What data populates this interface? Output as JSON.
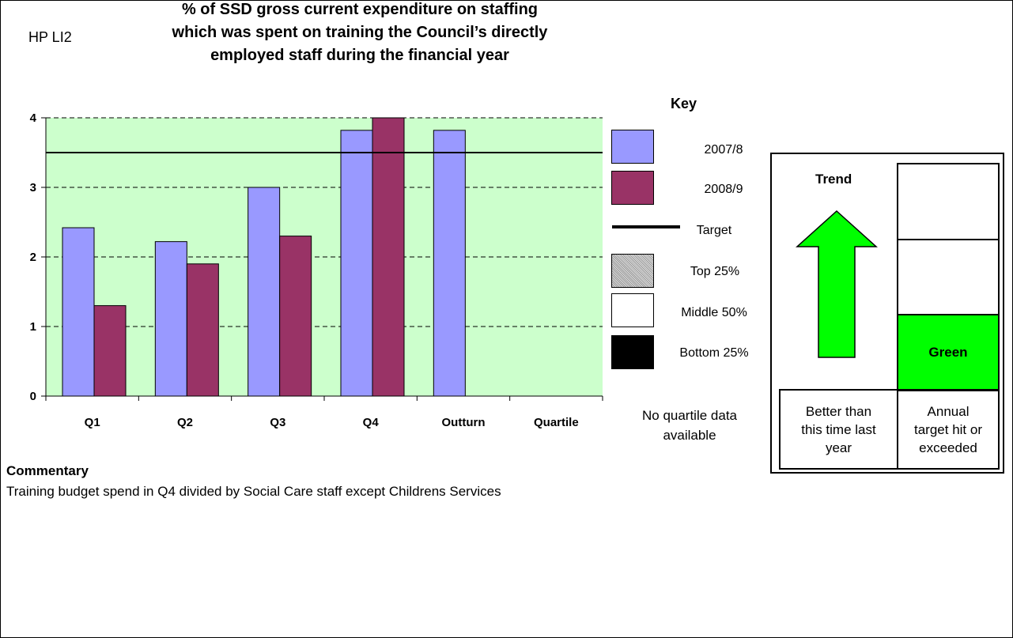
{
  "header": {
    "code": "HP LI2",
    "title_lines": [
      "% of SSD gross current expenditure on staffing",
      "which was spent on training the Council’s directly",
      "employed staff during the financial year"
    ]
  },
  "chart_data": {
    "type": "bar",
    "categories": [
      "Q1",
      "Q2",
      "Q3",
      "Q4",
      "Outturn",
      "Quartile"
    ],
    "series": [
      {
        "name": "2007/8",
        "values": [
          2.42,
          2.22,
          3.0,
          3.82,
          3.82,
          null
        ],
        "color": "#9999ff"
      },
      {
        "name": "2008/9",
        "values": [
          1.3,
          1.9,
          2.3,
          4.05,
          null,
          null
        ],
        "color": "#993366"
      }
    ],
    "target": 3.5,
    "ylim": [
      0,
      4
    ],
    "yticks": [
      "0",
      "1",
      "2",
      "3",
      "4"
    ],
    "ytick_values": [
      0,
      1,
      2,
      3,
      4
    ],
    "grid": true,
    "plot_background": "#ccffcc"
  },
  "key": {
    "title": "Key",
    "items": {
      "s1": "2007/8",
      "s2": "2008/9",
      "target": "Target",
      "top": "Top 25%",
      "middle": "Middle 50%",
      "bottom": "Bottom 25%"
    },
    "no_quartile": [
      "No quartile data",
      "available"
    ]
  },
  "status_panel": {
    "trend_title": "Trend",
    "trend_icon": "up-arrow-icon",
    "trend_color": "#00ff00",
    "status_label": "Green",
    "status_color": "#00ff00",
    "trend_caption": [
      "Better than",
      "this time last",
      "year"
    ],
    "status_caption": [
      "Annual",
      "target hit or",
      "exceeded"
    ]
  },
  "commentary": {
    "title": "Commentary",
    "text": "Training budget spend in Q4 divided by Social Care staff except Childrens Services"
  }
}
